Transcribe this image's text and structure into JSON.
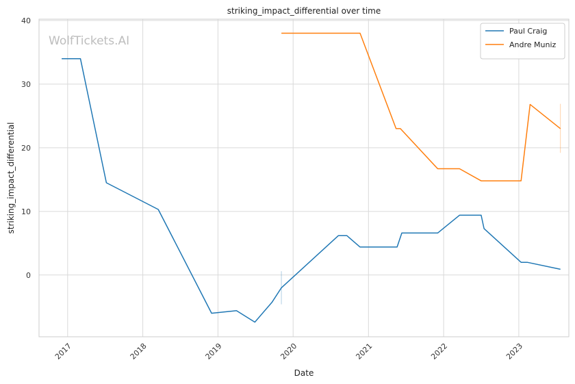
{
  "watermark": "WolfTickets.AI",
  "chart_data": {
    "type": "line",
    "title": "striking_impact_differential over time",
    "xlabel": "Date",
    "ylabel": "striking_impact_differential",
    "x_ticks": [
      "2017",
      "2018",
      "2019",
      "2020",
      "2021",
      "2022",
      "2023"
    ],
    "y_ticks": [
      0,
      10,
      20,
      30,
      40
    ],
    "xlim": [
      "2016-08-15",
      "2023-09-01"
    ],
    "ylim": [
      -9.7,
      40.2
    ],
    "grid": true,
    "legend_position": "top-right",
    "series": [
      {
        "name": "Paul Craig",
        "color": "#1f77b4",
        "points": [
          [
            "2016-12-03",
            34.0
          ],
          [
            "2017-03-04",
            34.0
          ],
          [
            "2017-07-08",
            14.5
          ],
          [
            "2018-03-17",
            10.3
          ],
          [
            "2018-12-01",
            -6.0
          ],
          [
            "2019-04-01",
            -5.6
          ],
          [
            "2019-06-29",
            -7.4
          ],
          [
            "2019-09-20",
            -4.3
          ],
          [
            "2019-11-05",
            -2.0
          ],
          [
            "2020-08-08",
            6.2
          ],
          [
            "2020-09-18",
            6.2
          ],
          [
            "2020-11-21",
            4.4
          ],
          [
            "2021-05-20",
            4.4
          ],
          [
            "2021-06-12",
            6.6
          ],
          [
            "2021-12-03",
            6.6
          ],
          [
            "2022-03-19",
            9.4
          ],
          [
            "2022-07-02",
            9.4
          ],
          [
            "2022-07-16",
            7.3
          ],
          [
            "2023-01-12",
            2.0
          ],
          [
            "2023-02-11",
            2.0
          ],
          [
            "2023-07-22",
            0.9
          ]
        ],
        "error_bars": [
          {
            "x": "2019-11-05",
            "low": -4.6,
            "high": 0.6
          }
        ]
      },
      {
        "name": "Andre Muniz",
        "color": "#ff7f0e",
        "points": [
          [
            "2019-11-05",
            38.0
          ],
          [
            "2020-11-21",
            38.0
          ],
          [
            "2021-05-15",
            23.0
          ],
          [
            "2021-06-05",
            23.0
          ],
          [
            "2021-12-03",
            16.7
          ],
          [
            "2022-03-19",
            16.7
          ],
          [
            "2022-07-02",
            14.8
          ],
          [
            "2023-01-12",
            14.8
          ],
          [
            "2023-02-25",
            26.8
          ],
          [
            "2023-07-22",
            23.0
          ]
        ],
        "error_bars": [
          {
            "x": "2023-07-22",
            "low": 19.2,
            "high": 26.9
          }
        ]
      }
    ]
  }
}
